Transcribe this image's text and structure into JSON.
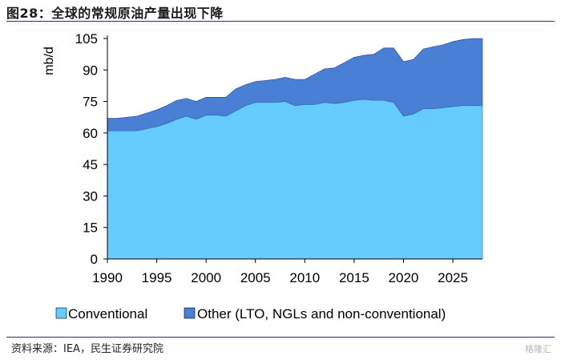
{
  "header": {
    "title": "图28：全球的常规原油产量出现下降"
  },
  "footer": {
    "source": "资料来源：IEA，民生证券研究院",
    "watermark": "格隆汇"
  },
  "colors": {
    "conventional": "#66ccff",
    "other": "#4a7fd6",
    "axis": "#000000"
  },
  "chart_data": {
    "type": "area",
    "stacked": true,
    "title": "",
    "xlabel": "",
    "ylabel": "mb/d",
    "xlim": [
      1990,
      2028
    ],
    "ylim": [
      0,
      105
    ],
    "xticks": [
      1990,
      1995,
      2000,
      2005,
      2010,
      2015,
      2020,
      2025
    ],
    "yticks": [
      0,
      15,
      30,
      45,
      60,
      75,
      90,
      105
    ],
    "x": [
      1990,
      1991,
      1992,
      1993,
      1994,
      1995,
      1996,
      1997,
      1998,
      1999,
      2000,
      2001,
      2002,
      2003,
      2004,
      2005,
      2006,
      2007,
      2008,
      2009,
      2010,
      2011,
      2012,
      2013,
      2014,
      2015,
      2016,
      2017,
      2018,
      2019,
      2020,
      2021,
      2022,
      2023,
      2024,
      2025,
      2026,
      2027,
      2028
    ],
    "series": [
      {
        "name": "Conventional",
        "values": [
          61,
          61,
          61,
          61,
          62,
          63,
          64.5,
          66.5,
          68,
          66.5,
          68.5,
          68.5,
          68,
          70.5,
          73,
          74.5,
          74.5,
          74.5,
          75,
          73,
          73.5,
          73.5,
          74.5,
          74,
          74.5,
          75.5,
          76,
          75.5,
          75.5,
          74.5,
          68,
          69,
          71.5,
          71.5,
          72,
          72.5,
          73,
          73,
          73
        ]
      },
      {
        "name": "Other (LTO, NGLs and non-conventional)",
        "values": [
          6,
          6,
          6.5,
          7,
          7.5,
          8,
          8.5,
          9,
          8.5,
          8.5,
          8.5,
          8.5,
          9,
          10.5,
          10,
          10,
          10.5,
          11,
          11.5,
          12.5,
          12,
          14.5,
          16,
          17,
          19,
          20.5,
          21,
          22,
          25,
          26,
          26,
          26,
          28.5,
          29.5,
          30,
          31,
          31.5,
          32,
          32
        ]
      }
    ],
    "legend": [
      "Conventional",
      "Other (LTO, NGLs and non-conventional)"
    ],
    "legend_position": "bottom"
  }
}
